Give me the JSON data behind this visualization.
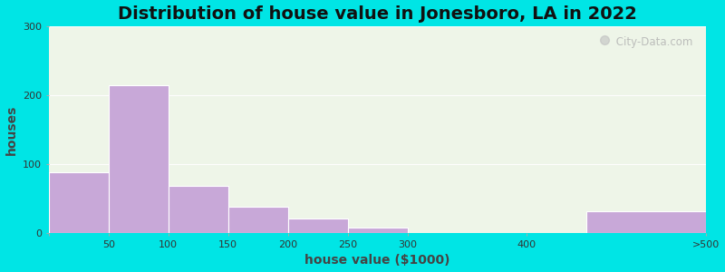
{
  "title": "Distribution of house value in Jonesboro, LA in 2022",
  "xlabel": "house value ($1000)",
  "ylabel": "houses",
  "tick_positions": [
    0,
    50,
    100,
    150,
    200,
    250,
    300,
    400,
    550
  ],
  "tick_labels": [
    "",
    "50",
    "100",
    "150",
    "200",
    "250",
    "300",
    "400",
    ">500"
  ],
  "bar_lefts": [
    0,
    50,
    100,
    150,
    200,
    250,
    300,
    450
  ],
  "bar_widths": [
    50,
    50,
    50,
    50,
    50,
    50,
    100,
    100
  ],
  "bar_values": [
    88,
    215,
    68,
    38,
    22,
    8,
    0,
    32
  ],
  "bar_color": "#c8a8d8",
  "bar_edge_color": "#ffffff",
  "ylim": [
    0,
    300
  ],
  "yticks": [
    0,
    100,
    200,
    300
  ],
  "bg_color": "#eef5e8",
  "outer_bg": "#00e5e5",
  "title_fontsize": 14,
  "axis_label_fontsize": 10,
  "tick_fontsize": 8,
  "watermark_text": " City-Data.com"
}
